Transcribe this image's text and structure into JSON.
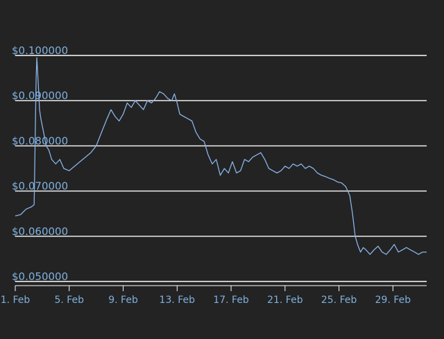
{
  "chart_data": {
    "type": "line",
    "title": "",
    "xlabel": "",
    "ylabel": "",
    "ylim": [
      0.05,
      0.1
    ],
    "y_ticks": [
      {
        "value": 0.05,
        "label": "$0.050000"
      },
      {
        "value": 0.06,
        "label": "$0.060000"
      },
      {
        "value": 0.07,
        "label": "$0.070000"
      },
      {
        "value": 0.08,
        "label": "$0.080000"
      },
      {
        "value": 0.09,
        "label": "$0.090000"
      },
      {
        "value": 0.1,
        "label": "$0.100000"
      }
    ],
    "xlim_day": [
      1,
      31.5
    ],
    "x_ticks": [
      {
        "day": 1,
        "label": "1. Feb"
      },
      {
        "day": 5,
        "label": "5. Feb"
      },
      {
        "day": 9,
        "label": "9. Feb"
      },
      {
        "day": 13,
        "label": "13. Feb"
      },
      {
        "day": 17,
        "label": "17. Feb"
      },
      {
        "day": 21,
        "label": "21. Feb"
      },
      {
        "day": 25,
        "label": "25. Feb"
      },
      {
        "day": 29,
        "label": "29. Feb"
      }
    ],
    "grid": true,
    "colors": {
      "background": "#232323",
      "line": "#8ab4e8",
      "grid": "#ffffff",
      "tick_label": "#7fb0de"
    },
    "series": [
      {
        "x": [
          1.0,
          1.4,
          1.8,
          2.2,
          2.4,
          2.55,
          2.6,
          2.7,
          2.8,
          2.9,
          3.1,
          3.3,
          3.5,
          3.7,
          4.0,
          4.3,
          4.6,
          5.0,
          5.4,
          5.8,
          6.2,
          6.6,
          7.0,
          7.4,
          7.8,
          8.1,
          8.4,
          8.7,
          9.0,
          9.3,
          9.6,
          9.9,
          10.2,
          10.5,
          10.8,
          11.1,
          11.4,
          11.7,
          12.0,
          12.3,
          12.6,
          12.8,
          13.0,
          13.2,
          13.5,
          13.8,
          14.1,
          14.4,
          14.7,
          15.0,
          15.3,
          15.6,
          15.9,
          16.2,
          16.5,
          16.8,
          17.1,
          17.4,
          17.7,
          18.0,
          18.3,
          18.6,
          18.9,
          19.2,
          19.5,
          19.8,
          20.1,
          20.4,
          20.7,
          21.0,
          21.3,
          21.6,
          21.9,
          22.2,
          22.5,
          22.8,
          23.1,
          23.4,
          23.7,
          24.0,
          24.3,
          24.6,
          24.9,
          25.2,
          25.5,
          25.8,
          26.0,
          26.2,
          26.4,
          26.6,
          26.8,
          27.0,
          27.3,
          27.6,
          27.9,
          28.2,
          28.5,
          28.8,
          29.1,
          29.4,
          29.7,
          30.0,
          30.3,
          30.6,
          30.9,
          31.2,
          31.5
        ],
        "y": [
          0.0645,
          0.0648,
          0.066,
          0.0665,
          0.067,
          0.095,
          0.0995,
          0.094,
          0.088,
          0.086,
          0.083,
          0.08,
          0.079,
          0.077,
          0.076,
          0.077,
          0.075,
          0.0745,
          0.0755,
          0.0765,
          0.0775,
          0.0785,
          0.08,
          0.083,
          0.086,
          0.088,
          0.0865,
          0.0855,
          0.087,
          0.0895,
          0.0885,
          0.09,
          0.089,
          0.088,
          0.09,
          0.0895,
          0.0905,
          0.092,
          0.0915,
          0.0905,
          0.09,
          0.0915,
          0.0895,
          0.087,
          0.0865,
          0.086,
          0.0855,
          0.083,
          0.0815,
          0.081,
          0.078,
          0.076,
          0.077,
          0.0735,
          0.075,
          0.074,
          0.0765,
          0.074,
          0.0745,
          0.077,
          0.0765,
          0.0775,
          0.078,
          0.0785,
          0.077,
          0.075,
          0.0745,
          0.074,
          0.0745,
          0.0755,
          0.075,
          0.076,
          0.0755,
          0.076,
          0.075,
          0.0755,
          0.075,
          0.074,
          0.0735,
          0.0732,
          0.0728,
          0.0725,
          0.072,
          0.0718,
          0.071,
          0.069,
          0.065,
          0.06,
          0.058,
          0.0565,
          0.0575,
          0.057,
          0.056,
          0.057,
          0.0578,
          0.0565,
          0.056,
          0.057,
          0.0582,
          0.0565,
          0.057,
          0.0575,
          0.057,
          0.0565,
          0.056,
          0.0565,
          0.0565
        ]
      }
    ]
  }
}
